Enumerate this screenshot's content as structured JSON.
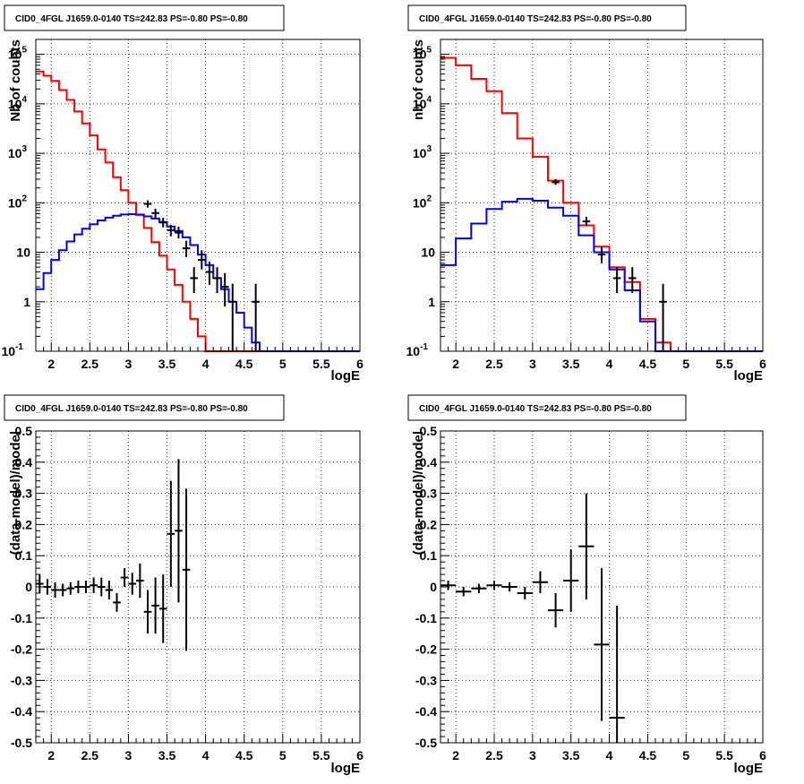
{
  "chart_data": [
    {
      "type": "histogram",
      "title": "CID0_4FGL J1659.0-0140 TS=242.83 PS=-0.80 PS=-0.80",
      "xlabel": "logE",
      "ylabel": "Nb of counts",
      "xlim": [
        1.8,
        6.0
      ],
      "ylim": [
        0.1,
        200000
      ],
      "log_y": true,
      "grid": true,
      "x_ticks": [
        "2",
        "2.5",
        "3",
        "3.5",
        "4",
        "4.5",
        "5",
        "5.5",
        "6"
      ],
      "y_ticks": [
        "10^{-1}",
        "1",
        "10",
        "10^{2}",
        "10^{3}",
        "10^{4}",
        "10^{5}"
      ],
      "bin_edges": [
        1.8,
        1.9,
        2.0,
        2.1,
        2.2,
        2.3,
        2.4,
        2.5,
        2.6,
        2.7,
        2.8,
        2.9,
        3.0,
        3.1,
        3.2,
        3.3,
        3.4,
        3.5,
        3.6,
        3.7,
        3.8,
        3.9,
        4.0,
        4.1,
        4.2,
        4.3,
        4.4,
        4.5,
        4.6,
        4.7,
        4.8,
        4.9,
        5.0,
        5.1,
        5.2,
        5.3,
        5.4,
        5.5,
        5.6,
        5.7,
        5.8,
        5.9,
        6.0
      ],
      "series": [
        {
          "color": "#ff0000",
          "values": [
            45000,
            37000,
            29000,
            19000,
            12000,
            7000,
            4000,
            2300,
            1200,
            650,
            330,
            180,
            100,
            58,
            31,
            16,
            8.5,
            4.5,
            2.2,
            1.0,
            0.45,
            0.2,
            0.1,
            0.1,
            0.1,
            0.1,
            0.1,
            0.1,
            0.1,
            0.1,
            0.1,
            0.1,
            0.1,
            0.1,
            0.1,
            0.1,
            0.1,
            0.1,
            0.1,
            0.1,
            0.1,
            0.1
          ]
        },
        {
          "color": "#0000ff",
          "values": [
            1.8,
            3.8,
            7.0,
            11.0,
            16.5,
            23.0,
            30.0,
            37.0,
            44.0,
            50.0,
            55.0,
            58.0,
            59.0,
            57.0,
            53.0,
            48.0,
            41.0,
            33.0,
            27.0,
            20.0,
            14.0,
            9.0,
            5.5,
            3.0,
            1.8,
            1.0,
            0.6,
            0.3,
            0.15,
            0.1,
            0.1,
            0.1,
            0.1,
            0.1,
            0.1,
            0.1,
            0.1,
            0.1,
            0.1,
            0.1,
            0.1,
            0.1
          ]
        }
      ],
      "points": [
        {
          "x": 3.25,
          "y": 95,
          "ylo": 80,
          "yhi": 112
        },
        {
          "x": 3.35,
          "y": 62,
          "ylo": 50,
          "yhi": 76
        },
        {
          "x": 3.45,
          "y": 40,
          "ylo": 32,
          "yhi": 50
        },
        {
          "x": 3.55,
          "y": 28,
          "ylo": 21,
          "yhi": 36
        },
        {
          "x": 3.65,
          "y": 25,
          "ylo": 19,
          "yhi": 33
        },
        {
          "x": 3.75,
          "y": 12,
          "ylo": 8,
          "yhi": 17
        },
        {
          "x": 3.85,
          "y": 3,
          "ylo": 1.5,
          "yhi": 5
        },
        {
          "x": 3.95,
          "y": 7,
          "ylo": 4.5,
          "yhi": 11
        },
        {
          "x": 4.05,
          "y": 4,
          "ylo": 2.2,
          "yhi": 6.5
        },
        {
          "x": 4.15,
          "y": 3,
          "ylo": 1.5,
          "yhi": 5
        },
        {
          "x": 4.25,
          "y": 2,
          "ylo": 0.8,
          "yhi": 3.8
        },
        {
          "x": 4.35,
          "y": 1,
          "ylo": 0.1,
          "yhi": 2.3
        },
        {
          "x": 4.65,
          "y": 1,
          "ylo": 0.1,
          "yhi": 2.3
        }
      ]
    },
    {
      "type": "histogram",
      "title": "CID0_4FGL J1659.0-0140 TS=242.83 PS=-0.80 PS=-0.80",
      "xlabel": "logE",
      "ylabel": "nb of counts",
      "xlim": [
        1.8,
        6.0
      ],
      "ylim": [
        0.1,
        200000
      ],
      "log_y": true,
      "grid": true,
      "x_ticks": [
        "2",
        "2.5",
        "3",
        "3.5",
        "4",
        "4.5",
        "5",
        "5.5",
        "6"
      ],
      "y_ticks": [
        "10^{-1}",
        "1",
        "10",
        "10^{2}",
        "10^{3}",
        "10^{4}",
        "10^{5}"
      ],
      "bin_edges": [
        1.8,
        2.0,
        2.2,
        2.4,
        2.6,
        2.8,
        3.0,
        3.2,
        3.4,
        3.6,
        3.8,
        4.0,
        4.2,
        4.4,
        4.6,
        4.8,
        5.0,
        5.2,
        5.4,
        5.6,
        5.8,
        6.0
      ],
      "series": [
        {
          "color": "#ff0000",
          "values": [
            85000,
            60000,
            32000,
            18000,
            6500,
            2000,
            850,
            280,
            100,
            35,
            13,
            5,
            2.5,
            0.45,
            0.15,
            0.1,
            0.1,
            0.1,
            0.1,
            0.1,
            0.1
          ]
        },
        {
          "color": "#0000ff",
          "values": [
            5.5,
            19,
            38,
            75,
            105,
            120,
            110,
            80,
            55,
            22,
            10,
            4.5,
            1.7,
            0.4,
            0.1,
            0.1,
            0.1,
            0.1,
            0.1,
            0.1,
            0.1
          ]
        }
      ],
      "points": [
        {
          "x": 3.3,
          "y": 260,
          "ylo": 230,
          "yhi": 300
        },
        {
          "x": 3.7,
          "y": 42,
          "ylo": 34,
          "yhi": 52
        },
        {
          "x": 3.9,
          "y": 9,
          "ylo": 6,
          "yhi": 13
        },
        {
          "x": 4.1,
          "y": 3,
          "ylo": 1.5,
          "yhi": 5
        },
        {
          "x": 4.3,
          "y": 3,
          "ylo": 1.5,
          "yhi": 5
        },
        {
          "x": 4.7,
          "y": 1,
          "ylo": 0.1,
          "yhi": 2.3
        }
      ]
    },
    {
      "type": "scatter",
      "title": "CID0_4FGL J1659.0-0140 TS=242.83 PS=-0.80 PS=-0.80",
      "xlabel": "logE",
      "ylabel": "(data-model)/model",
      "xlim": [
        1.8,
        6.0
      ],
      "ylim": [
        -0.5,
        0.5
      ],
      "grid": true,
      "x_ticks": [
        "2",
        "2.5",
        "3",
        "3.5",
        "4",
        "4.5",
        "5",
        "5.5",
        "6"
      ],
      "y_ticks": [
        "-0.5",
        "-0.4",
        "-0.3",
        "-0.2",
        "-0.1",
        "0",
        "0.1",
        "0.2",
        "0.3",
        "0.4",
        "0.5"
      ],
      "xerr": 0.05,
      "points": [
        {
          "x": 1.85,
          "y": 0.01,
          "err": 0.03
        },
        {
          "x": 1.95,
          "y": 0.0,
          "err": 0.025
        },
        {
          "x": 2.05,
          "y": -0.01,
          "err": 0.025
        },
        {
          "x": 2.15,
          "y": -0.01,
          "err": 0.02
        },
        {
          "x": 2.25,
          "y": -0.005,
          "err": 0.02
        },
        {
          "x": 2.35,
          "y": 0.0,
          "err": 0.02
        },
        {
          "x": 2.45,
          "y": 0.0,
          "err": 0.02
        },
        {
          "x": 2.55,
          "y": 0.005,
          "err": 0.025
        },
        {
          "x": 2.65,
          "y": 0.0,
          "err": 0.03
        },
        {
          "x": 2.75,
          "y": -0.01,
          "err": 0.03
        },
        {
          "x": 2.85,
          "y": -0.05,
          "err": 0.03
        },
        {
          "x": 2.95,
          "y": 0.03,
          "err": 0.03
        },
        {
          "x": 3.05,
          "y": 0.01,
          "err": 0.035
        },
        {
          "x": 3.15,
          "y": 0.02,
          "err": 0.055
        },
        {
          "x": 3.25,
          "y": -0.08,
          "err": 0.07
        },
        {
          "x": 3.35,
          "y": -0.06,
          "err": 0.09
        },
        {
          "x": 3.45,
          "y": -0.07,
          "err": 0.11
        },
        {
          "x": 3.55,
          "y": 0.17,
          "err": 0.17
        },
        {
          "x": 3.65,
          "y": 0.18,
          "err": 0.23
        },
        {
          "x": 3.75,
          "y": 0.055,
          "err": 0.26
        }
      ]
    },
    {
      "type": "scatter",
      "title": "CID0_4FGL J1659.0-0140 TS=242.83 PS=-0.80 PS=-0.80",
      "xlabel": "logE",
      "ylabel": "(data-model)/model",
      "xlim": [
        1.8,
        6.0
      ],
      "ylim": [
        -0.5,
        0.5
      ],
      "grid": true,
      "x_ticks": [
        "2",
        "2.5",
        "3",
        "3.5",
        "4",
        "4.5",
        "5",
        "5.5",
        "6"
      ],
      "y_ticks": [
        "-0.5",
        "-0.4",
        "-0.3",
        "-0.2",
        "-0.1",
        "0",
        "0.1",
        "0.2",
        "0.3",
        "0.4",
        "0.5"
      ],
      "xerr": 0.1,
      "points": [
        {
          "x": 1.9,
          "y": 0.005,
          "err": 0.015
        },
        {
          "x": 2.1,
          "y": -0.015,
          "err": 0.015
        },
        {
          "x": 2.3,
          "y": -0.005,
          "err": 0.015
        },
        {
          "x": 2.5,
          "y": 0.005,
          "err": 0.015
        },
        {
          "x": 2.7,
          "y": 0.0,
          "err": 0.015
        },
        {
          "x": 2.9,
          "y": -0.02,
          "err": 0.02
        },
        {
          "x": 3.1,
          "y": 0.015,
          "err": 0.035
        },
        {
          "x": 3.3,
          "y": -0.075,
          "err": 0.055
        },
        {
          "x": 3.5,
          "y": 0.02,
          "err": 0.1
        },
        {
          "x": 3.7,
          "y": 0.13,
          "err": 0.17
        },
        {
          "x": 3.9,
          "y": -0.185,
          "err": 0.245
        },
        {
          "x": 4.1,
          "y": -0.42,
          "err": 0.36
        }
      ]
    }
  ]
}
